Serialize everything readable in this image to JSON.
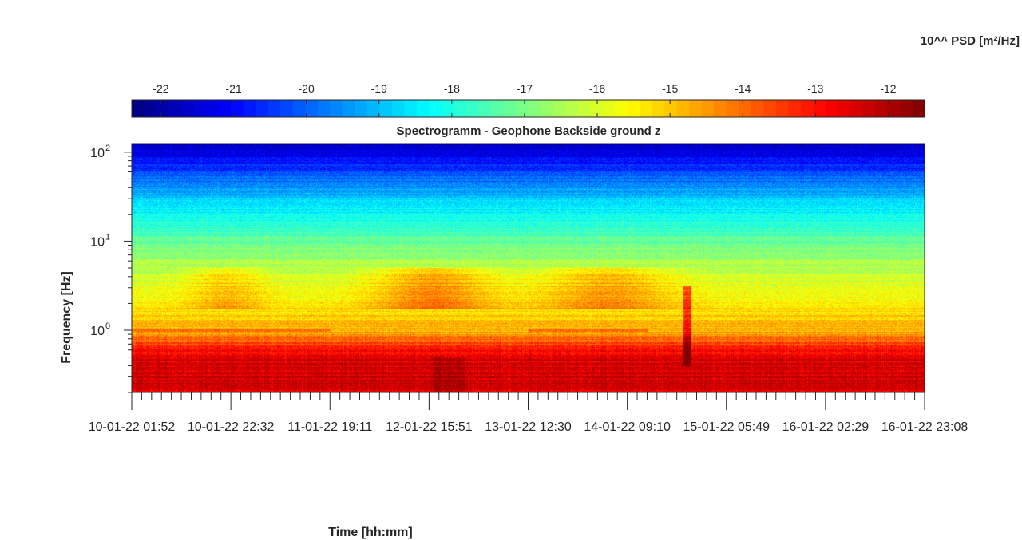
{
  "chart_data": {
    "type": "heatmap",
    "title": "Spectrogramm - Geophone Backside ground z",
    "xlabel": "Time [hh:mm]",
    "ylabel": "Frequency [Hz]",
    "colorbar_label": "10^^ PSD [m²/Hz]",
    "colorbar_range": [
      -22.4,
      -11.5
    ],
    "colorbar_ticks": [
      -22,
      -21,
      -20,
      -19,
      -18,
      -17,
      -16,
      -15,
      -14,
      -13,
      -12
    ],
    "colormap": "jet",
    "y_scale": "log",
    "ylim": [
      0.2,
      125
    ],
    "y_ticks": [
      {
        "value": 1,
        "base": "10",
        "exp": "0"
      },
      {
        "value": 10,
        "base": "10",
        "exp": "1"
      },
      {
        "value": 100,
        "base": "10",
        "exp": "2"
      }
    ],
    "x_ticks": [
      "10-01-22 01:52",
      "10-01-22 22:32",
      "11-01-22 19:11",
      "12-01-22 15:51",
      "13-01-22 12:30",
      "14-01-22 09:10",
      "15-01-22 05:49",
      "16-01-22 02:29",
      "16-01-22 23:08"
    ],
    "grid": false
  }
}
